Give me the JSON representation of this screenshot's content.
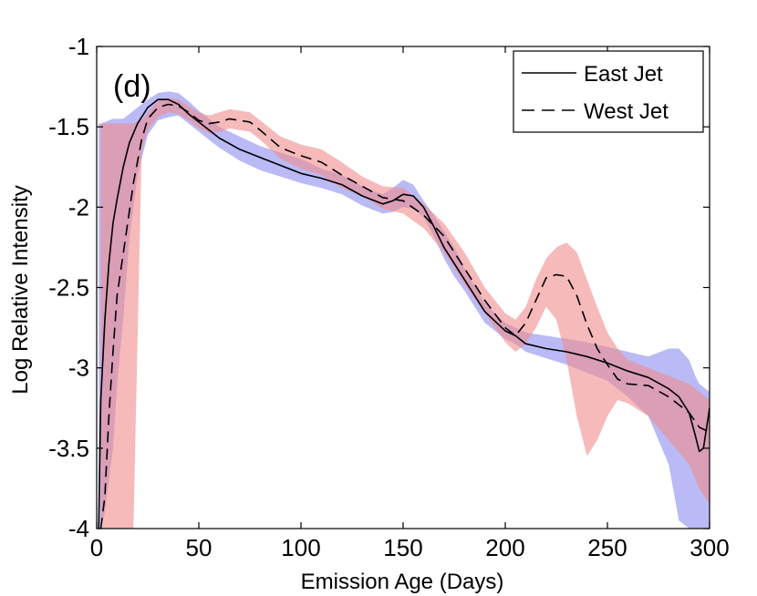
{
  "chart_data": {
    "type": "line",
    "panel_label": "(d)",
    "xlabel": "Emission Age (Days)",
    "ylabel": "Log Relative Intensity",
    "xlim": [
      0,
      300
    ],
    "ylim": [
      -4,
      -1
    ],
    "xticks": [
      0,
      50,
      100,
      150,
      200,
      250,
      300
    ],
    "yticks": [
      -1,
      -1.5,
      -2,
      -2.5,
      -3,
      -3.5,
      -4
    ],
    "legend_position": "top-right",
    "series": [
      {
        "name": "East Jet",
        "style": "solid",
        "color": "#000000",
        "band_color": "#8c8cf0",
        "x": [
          1,
          2,
          4,
          6,
          8,
          10,
          13,
          16,
          20,
          25,
          30,
          35,
          40,
          45,
          50,
          60,
          70,
          80,
          90,
          100,
          110,
          120,
          130,
          140,
          145,
          150,
          155,
          160,
          165,
          170,
          175,
          180,
          190,
          200,
          205,
          210,
          220,
          230,
          240,
          250,
          260,
          270,
          280,
          285,
          290,
          293,
          295,
          297,
          300
        ],
        "y": [
          -4.0,
          -3.2,
          -2.7,
          -2.35,
          -2.1,
          -1.95,
          -1.75,
          -1.6,
          -1.48,
          -1.38,
          -1.33,
          -1.33,
          -1.36,
          -1.42,
          -1.47,
          -1.57,
          -1.64,
          -1.69,
          -1.74,
          -1.79,
          -1.82,
          -1.86,
          -1.93,
          -1.98,
          -1.96,
          -1.92,
          -1.93,
          -2.0,
          -2.12,
          -2.25,
          -2.35,
          -2.45,
          -2.65,
          -2.77,
          -2.8,
          -2.85,
          -2.88,
          -2.9,
          -2.93,
          -2.97,
          -3.02,
          -3.06,
          -3.13,
          -3.18,
          -3.28,
          -3.42,
          -3.52,
          -3.5,
          -3.25
        ],
        "upper": [
          -1.48,
          -1.48,
          -1.47,
          -1.46,
          -1.45,
          -1.45,
          -1.45,
          -1.42,
          -1.38,
          -1.33,
          -1.29,
          -1.28,
          -1.29,
          -1.34,
          -1.4,
          -1.5,
          -1.56,
          -1.62,
          -1.66,
          -1.7,
          -1.76,
          -1.8,
          -1.87,
          -1.92,
          -1.88,
          -1.83,
          -1.86,
          -1.96,
          -2.05,
          -2.15,
          -2.25,
          -2.38,
          -2.6,
          -2.72,
          -2.75,
          -2.78,
          -2.8,
          -2.82,
          -2.84,
          -2.87,
          -2.9,
          -2.93,
          -2.88,
          -2.88,
          -2.95,
          -3.05,
          -3.1,
          -3.12,
          -3.15
        ],
        "lower": [
          -4.0,
          -4.0,
          -3.9,
          -3.7,
          -3.5,
          -3.1,
          -2.7,
          -2.2,
          -1.8,
          -1.55,
          -1.46,
          -1.44,
          -1.43,
          -1.48,
          -1.53,
          -1.63,
          -1.71,
          -1.77,
          -1.81,
          -1.85,
          -1.88,
          -1.92,
          -1.99,
          -2.04,
          -2.03,
          -2.0,
          -2.01,
          -2.06,
          -2.18,
          -2.32,
          -2.43,
          -2.52,
          -2.72,
          -2.82,
          -2.85,
          -2.9,
          -2.94,
          -2.98,
          -3.03,
          -3.08,
          -3.18,
          -3.3,
          -3.6,
          -3.95,
          -4.0,
          -4.0,
          -4.0,
          -4.0,
          -4.0
        ]
      },
      {
        "name": "West Jet",
        "style": "dashed",
        "color": "#000000",
        "band_color": "#f08c8c",
        "x": [
          2,
          4,
          6,
          8,
          10,
          14,
          18,
          22,
          25,
          30,
          35,
          40,
          45,
          50,
          55,
          60,
          65,
          70,
          75,
          80,
          90,
          100,
          110,
          120,
          130,
          140,
          150,
          160,
          170,
          180,
          190,
          200,
          205,
          210,
          215,
          220,
          225,
          230,
          235,
          240,
          245,
          250,
          255,
          260,
          270,
          280,
          290,
          295,
          300
        ],
        "y": [
          -4.0,
          -3.8,
          -3.3,
          -2.9,
          -2.55,
          -2.2,
          -1.85,
          -1.58,
          -1.45,
          -1.38,
          -1.36,
          -1.37,
          -1.41,
          -1.46,
          -1.48,
          -1.47,
          -1.45,
          -1.46,
          -1.47,
          -1.52,
          -1.63,
          -1.68,
          -1.72,
          -1.8,
          -1.87,
          -1.94,
          -1.96,
          -2.05,
          -2.18,
          -2.38,
          -2.58,
          -2.75,
          -2.8,
          -2.72,
          -2.58,
          -2.44,
          -2.42,
          -2.43,
          -2.55,
          -2.73,
          -2.88,
          -2.98,
          -3.07,
          -3.1,
          -3.11,
          -3.18,
          -3.28,
          -3.37,
          -3.4
        ],
        "upper": [
          -1.48,
          -1.48,
          -1.48,
          -1.48,
          -1.48,
          -1.48,
          -1.48,
          -1.46,
          -1.41,
          -1.34,
          -1.32,
          -1.33,
          -1.37,
          -1.41,
          -1.43,
          -1.41,
          -1.39,
          -1.4,
          -1.41,
          -1.46,
          -1.56,
          -1.61,
          -1.64,
          -1.72,
          -1.81,
          -1.87,
          -1.88,
          -1.98,
          -2.1,
          -2.28,
          -2.5,
          -2.66,
          -2.7,
          -2.62,
          -2.45,
          -2.32,
          -2.25,
          -2.22,
          -2.28,
          -2.45,
          -2.62,
          -2.78,
          -2.88,
          -2.95,
          -3.0,
          -3.05,
          -3.1,
          -3.15,
          -3.2
        ],
        "lower": [
          -4.0,
          -4.0,
          -4.0,
          -4.0,
          -4.0,
          -4.0,
          -4.0,
          -1.65,
          -1.52,
          -1.44,
          -1.41,
          -1.42,
          -1.46,
          -1.51,
          -1.54,
          -1.53,
          -1.51,
          -1.52,
          -1.53,
          -1.58,
          -1.7,
          -1.76,
          -1.8,
          -1.88,
          -1.93,
          -2.01,
          -2.04,
          -2.13,
          -2.28,
          -2.48,
          -2.66,
          -2.84,
          -2.9,
          -2.85,
          -2.75,
          -2.62,
          -2.7,
          -2.95,
          -3.3,
          -3.55,
          -3.45,
          -3.3,
          -3.2,
          -3.22,
          -3.3,
          -3.45,
          -3.6,
          -3.75,
          -3.85
        ]
      }
    ]
  }
}
